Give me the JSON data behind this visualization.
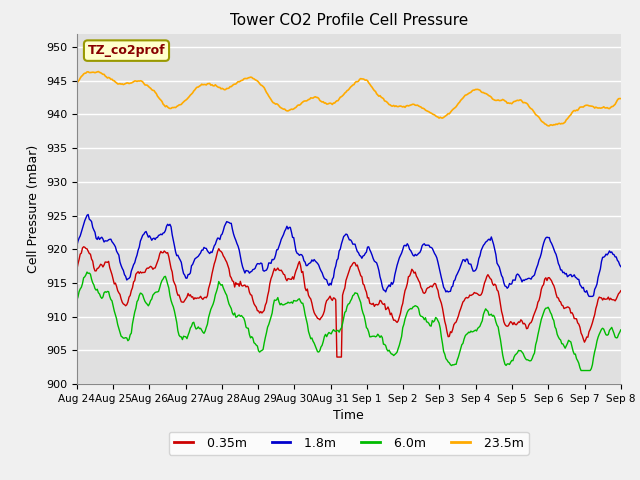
{
  "title": "Tower CO2 Profile Cell Pressure",
  "xlabel": "Time",
  "ylabel": "Cell Pressure (mBar)",
  "ylim": [
    900,
    952
  ],
  "yticks": [
    900,
    905,
    910,
    915,
    920,
    925,
    930,
    935,
    940,
    945,
    950
  ],
  "fig_bg_color": "#f0f0f0",
  "plot_bg_color": "#e0e0e0",
  "legend_label": "TZ_co2prof",
  "legend_box_color": "#ffffcc",
  "legend_box_edge": "#999900",
  "series": {
    "0.35m": {
      "color": "#cc0000",
      "lw": 1.0
    },
    "1.8m": {
      "color": "#0000cc",
      "lw": 1.0
    },
    "6.0m": {
      "color": "#00bb00",
      "lw": 1.0
    },
    "23.5m": {
      "color": "#ffaa00",
      "lw": 1.2
    }
  },
  "xtick_labels": [
    "Aug 24",
    "Aug 25",
    "Aug 26",
    "Aug 27",
    "Aug 28",
    "Aug 29",
    "Aug 30",
    "Aug 31",
    "Sep 1",
    "Sep 2",
    "Sep 3",
    "Sep 4",
    "Sep 5",
    "Sep 6",
    "Sep 7",
    "Sep 8"
  ],
  "n_points": 480
}
